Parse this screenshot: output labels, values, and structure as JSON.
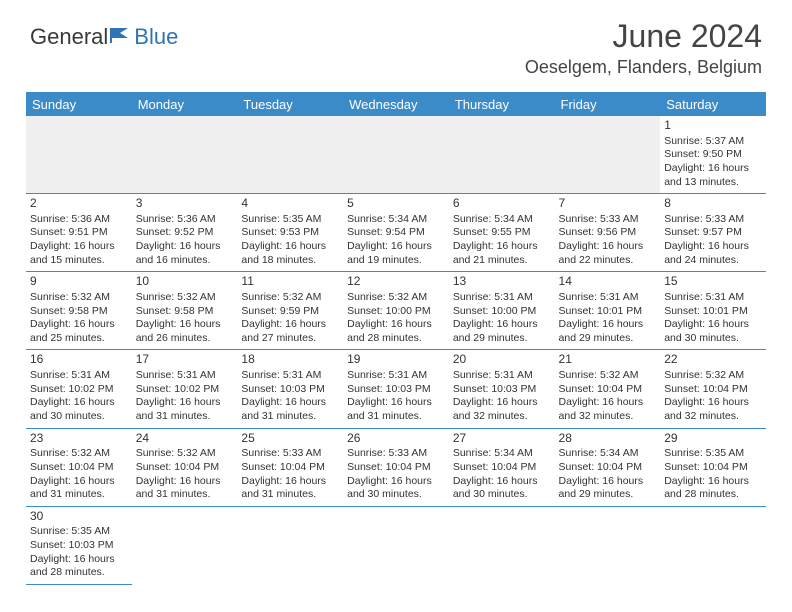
{
  "brand": {
    "text_general": "General",
    "text_blue": "Blue",
    "icon_color": "#2e74b5"
  },
  "title": {
    "month": "June 2024",
    "location": "Oeselgem, Flanders, Belgium"
  },
  "colors": {
    "header_bg": "#3b8bc9",
    "header_fg": "#ffffff",
    "border": "#3b8bc9",
    "empty_lead_bg": "#f0f0f0",
    "text": "#333333"
  },
  "daynames": [
    "Sunday",
    "Monday",
    "Tuesday",
    "Wednesday",
    "Thursday",
    "Friday",
    "Saturday"
  ],
  "weeks": [
    [
      null,
      null,
      null,
      null,
      null,
      null,
      {
        "n": "1",
        "sunrise": "Sunrise: 5:37 AM",
        "sunset": "Sunset: 9:50 PM",
        "dl1": "Daylight: 16 hours",
        "dl2": "and 13 minutes."
      }
    ],
    [
      {
        "n": "2",
        "sunrise": "Sunrise: 5:36 AM",
        "sunset": "Sunset: 9:51 PM",
        "dl1": "Daylight: 16 hours",
        "dl2": "and 15 minutes."
      },
      {
        "n": "3",
        "sunrise": "Sunrise: 5:36 AM",
        "sunset": "Sunset: 9:52 PM",
        "dl1": "Daylight: 16 hours",
        "dl2": "and 16 minutes."
      },
      {
        "n": "4",
        "sunrise": "Sunrise: 5:35 AM",
        "sunset": "Sunset: 9:53 PM",
        "dl1": "Daylight: 16 hours",
        "dl2": "and 18 minutes."
      },
      {
        "n": "5",
        "sunrise": "Sunrise: 5:34 AM",
        "sunset": "Sunset: 9:54 PM",
        "dl1": "Daylight: 16 hours",
        "dl2": "and 19 minutes."
      },
      {
        "n": "6",
        "sunrise": "Sunrise: 5:34 AM",
        "sunset": "Sunset: 9:55 PM",
        "dl1": "Daylight: 16 hours",
        "dl2": "and 21 minutes."
      },
      {
        "n": "7",
        "sunrise": "Sunrise: 5:33 AM",
        "sunset": "Sunset: 9:56 PM",
        "dl1": "Daylight: 16 hours",
        "dl2": "and 22 minutes."
      },
      {
        "n": "8",
        "sunrise": "Sunrise: 5:33 AM",
        "sunset": "Sunset: 9:57 PM",
        "dl1": "Daylight: 16 hours",
        "dl2": "and 24 minutes."
      }
    ],
    [
      {
        "n": "9",
        "sunrise": "Sunrise: 5:32 AM",
        "sunset": "Sunset: 9:58 PM",
        "dl1": "Daylight: 16 hours",
        "dl2": "and 25 minutes."
      },
      {
        "n": "10",
        "sunrise": "Sunrise: 5:32 AM",
        "sunset": "Sunset: 9:58 PM",
        "dl1": "Daylight: 16 hours",
        "dl2": "and 26 minutes."
      },
      {
        "n": "11",
        "sunrise": "Sunrise: 5:32 AM",
        "sunset": "Sunset: 9:59 PM",
        "dl1": "Daylight: 16 hours",
        "dl2": "and 27 minutes."
      },
      {
        "n": "12",
        "sunrise": "Sunrise: 5:32 AM",
        "sunset": "Sunset: 10:00 PM",
        "dl1": "Daylight: 16 hours",
        "dl2": "and 28 minutes."
      },
      {
        "n": "13",
        "sunrise": "Sunrise: 5:31 AM",
        "sunset": "Sunset: 10:00 PM",
        "dl1": "Daylight: 16 hours",
        "dl2": "and 29 minutes."
      },
      {
        "n": "14",
        "sunrise": "Sunrise: 5:31 AM",
        "sunset": "Sunset: 10:01 PM",
        "dl1": "Daylight: 16 hours",
        "dl2": "and 29 minutes."
      },
      {
        "n": "15",
        "sunrise": "Sunrise: 5:31 AM",
        "sunset": "Sunset: 10:01 PM",
        "dl1": "Daylight: 16 hours",
        "dl2": "and 30 minutes."
      }
    ],
    [
      {
        "n": "16",
        "sunrise": "Sunrise: 5:31 AM",
        "sunset": "Sunset: 10:02 PM",
        "dl1": "Daylight: 16 hours",
        "dl2": "and 30 minutes."
      },
      {
        "n": "17",
        "sunrise": "Sunrise: 5:31 AM",
        "sunset": "Sunset: 10:02 PM",
        "dl1": "Daylight: 16 hours",
        "dl2": "and 31 minutes."
      },
      {
        "n": "18",
        "sunrise": "Sunrise: 5:31 AM",
        "sunset": "Sunset: 10:03 PM",
        "dl1": "Daylight: 16 hours",
        "dl2": "and 31 minutes."
      },
      {
        "n": "19",
        "sunrise": "Sunrise: 5:31 AM",
        "sunset": "Sunset: 10:03 PM",
        "dl1": "Daylight: 16 hours",
        "dl2": "and 31 minutes."
      },
      {
        "n": "20",
        "sunrise": "Sunrise: 5:31 AM",
        "sunset": "Sunset: 10:03 PM",
        "dl1": "Daylight: 16 hours",
        "dl2": "and 32 minutes."
      },
      {
        "n": "21",
        "sunrise": "Sunrise: 5:32 AM",
        "sunset": "Sunset: 10:04 PM",
        "dl1": "Daylight: 16 hours",
        "dl2": "and 32 minutes."
      },
      {
        "n": "22",
        "sunrise": "Sunrise: 5:32 AM",
        "sunset": "Sunset: 10:04 PM",
        "dl1": "Daylight: 16 hours",
        "dl2": "and 32 minutes."
      }
    ],
    [
      {
        "n": "23",
        "sunrise": "Sunrise: 5:32 AM",
        "sunset": "Sunset: 10:04 PM",
        "dl1": "Daylight: 16 hours",
        "dl2": "and 31 minutes."
      },
      {
        "n": "24",
        "sunrise": "Sunrise: 5:32 AM",
        "sunset": "Sunset: 10:04 PM",
        "dl1": "Daylight: 16 hours",
        "dl2": "and 31 minutes."
      },
      {
        "n": "25",
        "sunrise": "Sunrise: 5:33 AM",
        "sunset": "Sunset: 10:04 PM",
        "dl1": "Daylight: 16 hours",
        "dl2": "and 31 minutes."
      },
      {
        "n": "26",
        "sunrise": "Sunrise: 5:33 AM",
        "sunset": "Sunset: 10:04 PM",
        "dl1": "Daylight: 16 hours",
        "dl2": "and 30 minutes."
      },
      {
        "n": "27",
        "sunrise": "Sunrise: 5:34 AM",
        "sunset": "Sunset: 10:04 PM",
        "dl1": "Daylight: 16 hours",
        "dl2": "and 30 minutes."
      },
      {
        "n": "28",
        "sunrise": "Sunrise: 5:34 AM",
        "sunset": "Sunset: 10:04 PM",
        "dl1": "Daylight: 16 hours",
        "dl2": "and 29 minutes."
      },
      {
        "n": "29",
        "sunrise": "Sunrise: 5:35 AM",
        "sunset": "Sunset: 10:04 PM",
        "dl1": "Daylight: 16 hours",
        "dl2": "and 28 minutes."
      }
    ],
    [
      {
        "n": "30",
        "sunrise": "Sunrise: 5:35 AM",
        "sunset": "Sunset: 10:03 PM",
        "dl1": "Daylight: 16 hours",
        "dl2": "and 28 minutes."
      },
      null,
      null,
      null,
      null,
      null,
      null
    ]
  ]
}
